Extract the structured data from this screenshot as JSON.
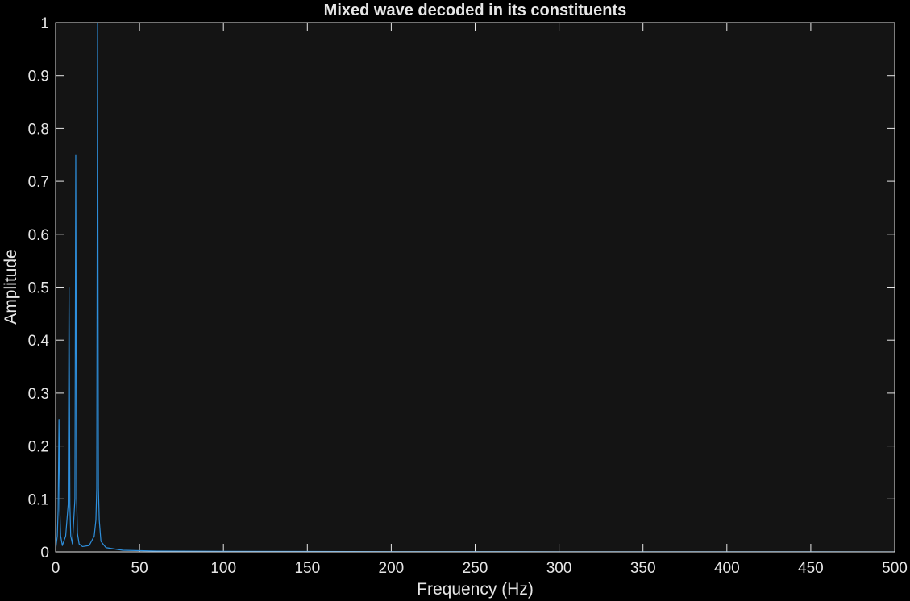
{
  "chart_data": {
    "type": "line",
    "title": "Mixed wave decoded in its constituents",
    "xlabel": "Frequency (Hz)",
    "ylabel": "Amplitude",
    "xlim": [
      0,
      500
    ],
    "ylim": [
      0,
      1
    ],
    "xticks": [
      0,
      50,
      100,
      150,
      200,
      250,
      300,
      350,
      400,
      450,
      500
    ],
    "yticks": [
      0,
      0.1,
      0.2,
      0.3,
      0.4,
      0.5,
      0.6,
      0.7,
      0.8,
      0.9,
      1
    ],
    "xtick_labels": [
      "0",
      "50",
      "100",
      "150",
      "200",
      "250",
      "300",
      "350",
      "400",
      "450",
      "500"
    ],
    "ytick_labels": [
      "0",
      "0.1",
      "0.2",
      "0.3",
      "0.4",
      "0.5",
      "0.6",
      "0.7",
      "0.8",
      "0.9",
      "1"
    ],
    "grid": false,
    "colors": {
      "background": "#000000",
      "axes_background": "#141414",
      "axes": "#e6e6e6",
      "series": "#2e8fdc"
    },
    "series": [
      {
        "x": [
          0,
          1.0,
          1.5,
          2.0,
          2.5,
          3.0,
          4.0,
          6.0,
          7.5,
          8.0,
          8.5,
          9.0,
          10.0,
          11.5,
          12.0,
          12.5,
          13.0,
          14.0,
          16.0,
          20.0,
          23.0,
          24.0,
          24.5,
          25.0,
          25.5,
          26.0,
          27.0,
          30.0,
          40.0,
          60.0,
          100.0,
          200.0,
          300.0,
          400.0,
          500.0
        ],
        "values": [
          0.004,
          0.03,
          0.08,
          0.25,
          0.08,
          0.03,
          0.012,
          0.03,
          0.09,
          0.5,
          0.09,
          0.03,
          0.015,
          0.1,
          0.75,
          0.1,
          0.035,
          0.015,
          0.01,
          0.012,
          0.03,
          0.06,
          0.12,
          1.0,
          0.12,
          0.06,
          0.02,
          0.008,
          0.003,
          0.0015,
          0.001,
          0.0005,
          0.0003,
          0.0002,
          0.0001
        ]
      }
    ]
  }
}
